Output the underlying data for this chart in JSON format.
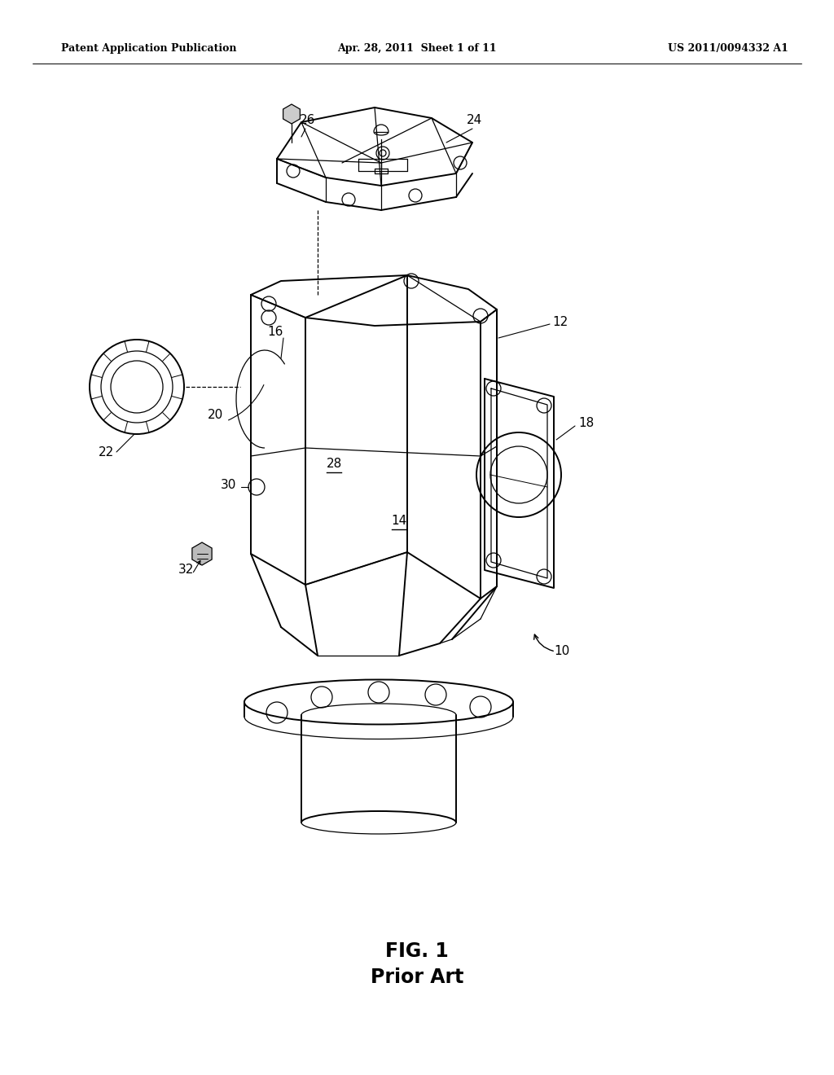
{
  "header_left": "Patent Application Publication",
  "header_center": "Apr. 28, 2011  Sheet 1 of 11",
  "header_right": "US 2011/0094332 A1",
  "fig_label": "FIG. 1",
  "fig_sublabel": "Prior Art",
  "bg_color": "#ffffff",
  "lc": "#000000",
  "lw_main": 1.4,
  "lw_thin": 0.9,
  "lw_xtra": 0.7
}
